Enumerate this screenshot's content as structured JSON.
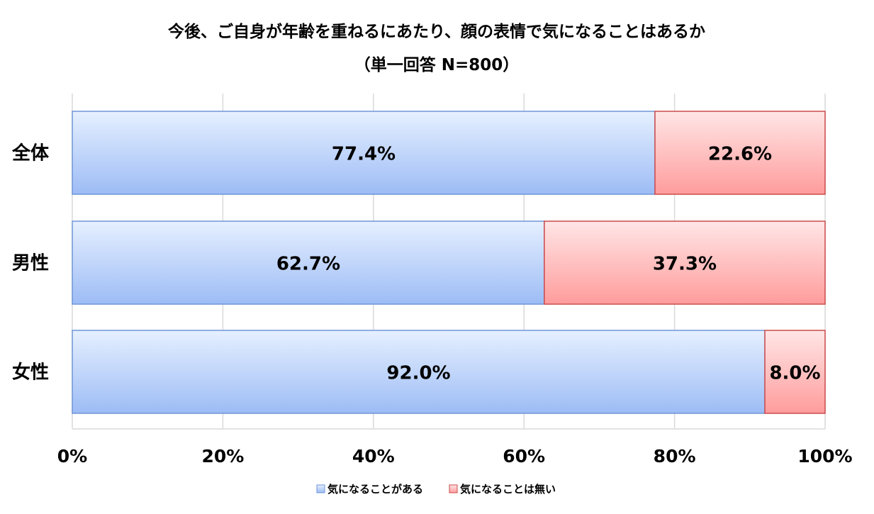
{
  "chart_data": {
    "type": "bar",
    "orientation": "horizontal",
    "stacked": true,
    "title": "今後、ご自身が年齢を重ねるにあたり、顔の表情で気になることはあるか",
    "subtitle": "（単一回答 N=800）",
    "categories": [
      "全体",
      "男性",
      "女性"
    ],
    "series": [
      {
        "name": "気になることがある",
        "values": [
          77.4,
          62.7,
          92.0
        ],
        "labels": [
          "77.4%",
          "62.7%",
          "92.0%"
        ],
        "color_top": "#e6f0ff",
        "color_bottom": "#9dbcf5",
        "stroke": "#6f95d9"
      },
      {
        "name": "気になることは無い",
        "values": [
          22.6,
          37.3,
          8.0
        ],
        "labels": [
          "22.6%",
          "37.3%",
          "8.0%"
        ],
        "color_top": "#ffe6e6",
        "color_bottom": "#ff9c9c",
        "stroke": "#cc4b4b"
      }
    ],
    "xlim": [
      0,
      100
    ],
    "x_ticks": [
      0,
      20,
      40,
      60,
      80,
      100
    ],
    "x_tick_labels": [
      "0%",
      "20%",
      "40%",
      "60%",
      "80%",
      "100%"
    ],
    "grid": true,
    "legend_position": "bottom"
  }
}
